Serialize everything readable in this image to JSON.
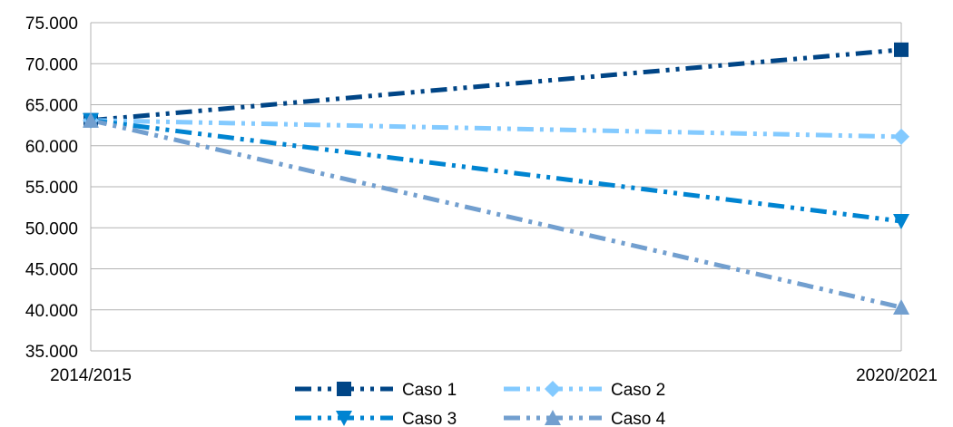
{
  "chart_data": {
    "type": "line",
    "title": "",
    "xlabel": "",
    "ylabel": "",
    "categories": [
      "2014/2015",
      "2020/2021"
    ],
    "ylim": [
      35000,
      75000
    ],
    "ytick_values": [
      35000,
      40000,
      45000,
      50000,
      55000,
      60000,
      65000,
      70000,
      75000
    ],
    "ytick_labels": [
      "35.000",
      "40.000",
      "45.000",
      "50.000",
      "55.000",
      "60.000",
      "65.000",
      "70.000",
      "75.000"
    ],
    "grid": true,
    "legend_position": "bottom",
    "series": [
      {
        "name": "Caso 1",
        "values": [
          63100,
          71700
        ],
        "color": "#004586",
        "marker": "square"
      },
      {
        "name": "Caso 2",
        "values": [
          63100,
          61100
        ],
        "color": "#83CAFF",
        "marker": "diamond"
      },
      {
        "name": "Caso 3",
        "values": [
          63100,
          50800
        ],
        "color": "#0084D1",
        "marker": "triangle-down"
      },
      {
        "name": "Caso 4",
        "values": [
          63100,
          40300
        ],
        "color": "#729FCF",
        "marker": "triangle-up"
      }
    ]
  }
}
